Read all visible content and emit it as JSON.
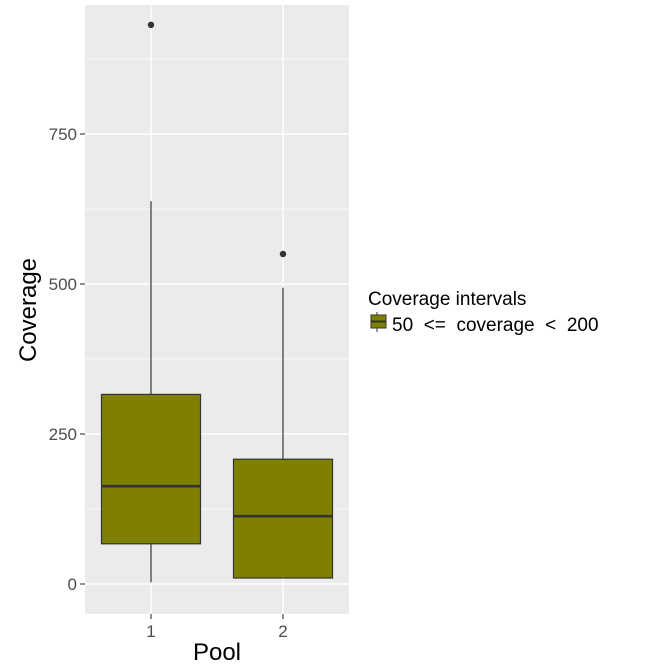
{
  "chart_data": {
    "type": "boxplot",
    "xlabel": "Pool",
    "ylabel": "Coverage",
    "categories": [
      "1",
      "2"
    ],
    "ylim": [
      -50,
      965
    ],
    "y_ticks": [
      0,
      250,
      500,
      750
    ],
    "y_tick_labels": [
      "0",
      "250",
      "500",
      "750"
    ],
    "grid": true,
    "legend": {
      "position": "right",
      "title": "Coverage intervals",
      "entries": [
        "50  <=  coverage  <  200"
      ]
    },
    "fill_color": "#808000",
    "panel_color": "#ebebeb",
    "boxes": [
      {
        "category": "1",
        "whisker_low": 3,
        "q1": 67,
        "median": 163,
        "q3": 316,
        "whisker_high": 638,
        "outliers": [
          932
        ]
      },
      {
        "category": "2",
        "whisker_low": 10,
        "q1": 10,
        "median": 113,
        "q3": 208,
        "whisker_high": 494,
        "outliers": [
          550
        ]
      }
    ]
  }
}
